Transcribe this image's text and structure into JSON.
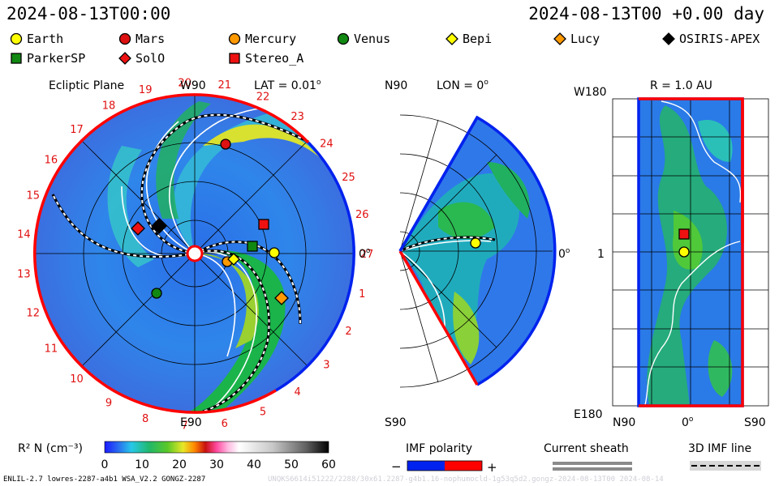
{
  "header": {
    "date_left": "2024-08-13T00:00",
    "date_right": "2024-08-13T00 +0.00 day"
  },
  "legend": [
    {
      "name": "Earth",
      "shape": "circle",
      "color": "#ffff00"
    },
    {
      "name": "Mars",
      "shape": "circle",
      "color": "#dd1111"
    },
    {
      "name": "Mercury",
      "shape": "circle",
      "color": "#ff9900"
    },
    {
      "name": "Venus",
      "shape": "circle",
      "color": "#118811"
    },
    {
      "name": "Bepi",
      "shape": "diamond",
      "color": "#ffff00"
    },
    {
      "name": "Lucy",
      "shape": "diamond",
      "color": "#ff9900"
    },
    {
      "name": "OSIRIS-APEX",
      "shape": "diamond",
      "color": "#000000"
    },
    {
      "name": "ParkerSP",
      "shape": "square",
      "color": "#118811"
    },
    {
      "name": "SolO",
      "shape": "diamond",
      "color": "#ee1111"
    },
    {
      "name": "Stereo_A",
      "shape": "square",
      "color": "#ee1111"
    }
  ],
  "ecliptic": {
    "title": "Ecliptic Plane",
    "top_label": "W90",
    "bottom_label": "E90",
    "right_label": "0",
    "lat_label": "LAT = 0.01",
    "sectors": [
      "1",
      "2",
      "3",
      "4",
      "5",
      "6",
      "7",
      "8",
      "9",
      "10",
      "11",
      "12",
      "13",
      "14",
      "15",
      "16",
      "17",
      "18",
      "19",
      "20",
      "21",
      "22",
      "23",
      "24",
      "25",
      "26",
      "27"
    ]
  },
  "meridional": {
    "top_label": "N90",
    "bottom_label": "S90",
    "right_label": "0",
    "lon_label": "LON = 0"
  },
  "radial": {
    "title": "R = 1.0 AU",
    "top_left": "W180",
    "mid_left": "1",
    "bottom_left": "E180",
    "x_ticks": [
      "N90",
      "0",
      "S90"
    ]
  },
  "chart_data": {
    "type": "heatmap",
    "colorbar": {
      "label": "R² N (cm⁻³)",
      "min": 0,
      "max": 60,
      "ticks": [
        0,
        10,
        20,
        30,
        40,
        50,
        60
      ]
    },
    "imf_polarity": {
      "label": "IMF polarity",
      "minus": "−",
      "plus": "+"
    },
    "current_sheath_label": "Current sheath",
    "imf_line_label": "3D IMF line"
  },
  "footer": {
    "left": "ENLIL-2.7 lowres-2287-a4b1 WSA_V2.2 GONGZ-2287",
    "right": "UNQKS6614i51222/2288/30x61.2287-g4b1.16-nophumocld-1g53q5d2.gongz-2024-08-13T00   2024-08-14"
  }
}
